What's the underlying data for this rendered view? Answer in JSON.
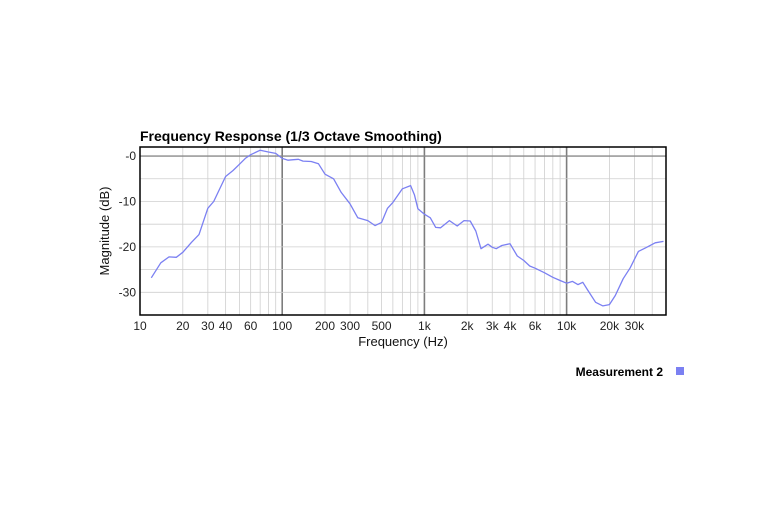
{
  "chart_data": {
    "type": "line",
    "title": "Frequency Response (1/3 Octave Smoothing)",
    "xlabel": "Frequency (Hz)",
    "ylabel": "Magnitude (dB)",
    "x_scale": "log",
    "xlim": [
      10,
      50000
    ],
    "ylim": [
      -35,
      2
    ],
    "x_ticks": [
      10,
      20,
      30,
      40,
      60,
      100,
      200,
      300,
      500,
      1000,
      2000,
      3000,
      4000,
      6000,
      10000,
      20000,
      30000
    ],
    "x_tick_labels": [
      "10",
      "20",
      "30",
      "40",
      "60",
      "100",
      "200",
      "300",
      "500",
      "1k",
      "2k",
      "3k",
      "4k",
      "6k",
      "10k",
      "20k",
      "30k"
    ],
    "y_ticks": [
      0,
      -10,
      -20,
      -30
    ],
    "y_tick_labels": [
      "-0",
      "-10",
      "-20",
      "-30"
    ],
    "grid": true,
    "legend": "bottom-right",
    "series": [
      {
        "name": "Measurement 2",
        "color": "#7b80f2",
        "x": [
          12,
          14,
          16,
          18,
          20,
          23,
          26,
          30,
          33,
          36,
          40,
          45,
          50,
          55,
          60,
          70,
          80,
          90,
          100,
          110,
          120,
          130,
          140,
          160,
          180,
          200,
          230,
          260,
          300,
          340,
          400,
          450,
          500,
          550,
          600,
          700,
          800,
          850,
          900,
          1000,
          1100,
          1200,
          1300,
          1500,
          1700,
          1900,
          2100,
          2300,
          2500,
          2800,
          3000,
          3200,
          3500,
          4000,
          4500,
          5000,
          5500,
          6000,
          7000,
          8000,
          9000,
          10000,
          11000,
          12000,
          13000,
          14000,
          16000,
          18000,
          20000,
          22000,
          25000,
          28000,
          32000,
          36000,
          42000,
          48000
        ],
        "y": [
          -26.8,
          -23.5,
          -22.2,
          -22.3,
          -21.2,
          -19,
          -17.3,
          -11.5,
          -10,
          -7.5,
          -4.5,
          -3.2,
          -1.8,
          -0.5,
          0.3,
          1.3,
          0.9,
          0.6,
          -0.5,
          -0.9,
          -0.8,
          -0.7,
          -1.1,
          -1.2,
          -1.7,
          -4,
          -5,
          -8,
          -10.5,
          -13.6,
          -14.2,
          -15.3,
          -14.6,
          -11.5,
          -10.2,
          -7.2,
          -6.5,
          -8.5,
          -11.6,
          -12.8,
          -13.6,
          -15.7,
          -15.8,
          -14.2,
          -15.4,
          -14.2,
          -14.3,
          -16.5,
          -20.4,
          -19.4,
          -20.1,
          -20.4,
          -19.7,
          -19.3,
          -22.0,
          -23.0,
          -24.2,
          -24.7,
          -25.7,
          -26.7,
          -27.4,
          -28.0,
          -27.6,
          -28.3,
          -27.8,
          -29.4,
          -32.2,
          -33.0,
          -32.7,
          -30.7,
          -27.0,
          -24.6,
          -21.0,
          -20.2,
          -19.1,
          -18.8
        ]
      }
    ]
  }
}
